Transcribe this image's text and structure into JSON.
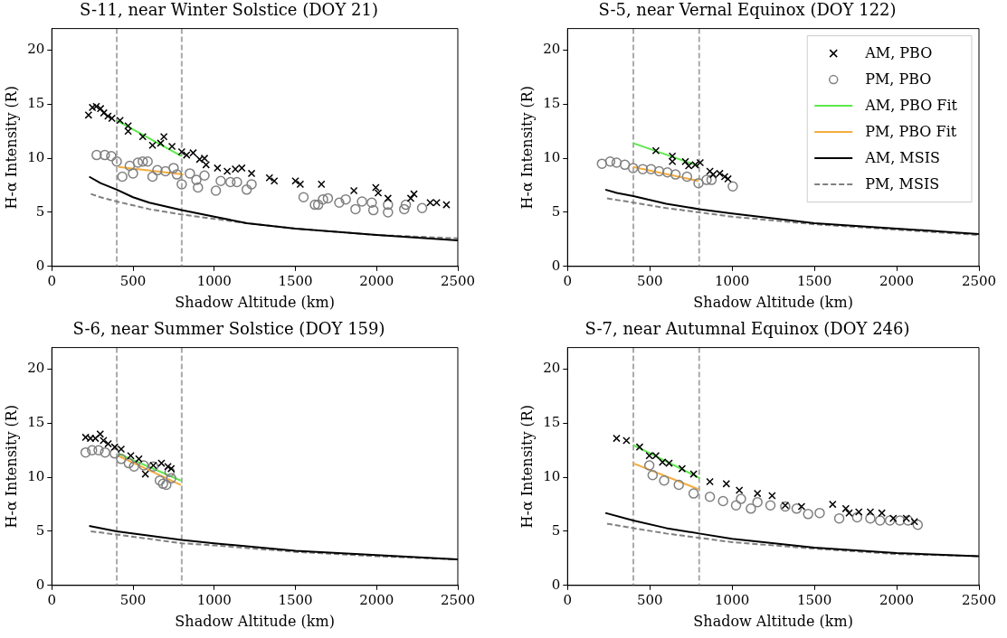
{
  "chart_data": [
    {
      "type": "scatter",
      "title": "S-11, near Winter Solstice (DOY 21)",
      "xlabel": "Shadow Altitude (km)",
      "ylabel": "H-α Intensity (R)",
      "xlim": [
        0,
        2500
      ],
      "ylim": [
        0,
        22
      ],
      "xticks": [
        0,
        500,
        1000,
        1500,
        2000,
        2500
      ],
      "yticks": [
        0,
        5,
        10,
        15,
        20
      ],
      "ref_lines": [
        {
          "axis": "x",
          "value": 400,
          "color": "#aaaaaa",
          "line_style": "dashed"
        },
        {
          "axis": "x",
          "value": 800,
          "color": "#aaaaaa",
          "line_style": "dashed"
        }
      ],
      "series": [
        {
          "type": "scatter",
          "marker": "cross",
          "color": "#000000",
          "x": [
            226,
            250,
            274,
            300,
            320,
            346,
            370,
            420,
            470,
            470,
            560,
            620,
            670,
            690,
            740,
            800,
            830,
            870,
            910,
            940,
            950,
            1020,
            1080,
            1130,
            1170,
            1230,
            1340,
            1370,
            1500,
            1530,
            1660,
            1860,
            1995,
            2010,
            2070,
            2210,
            2230,
            2330,
            2370,
            2430
          ],
          "values": [
            14.0,
            14.7,
            14.8,
            14.6,
            14.2,
            13.9,
            13.7,
            13.5,
            13.0,
            12.5,
            12.0,
            11.2,
            11.4,
            12.0,
            11.1,
            10.6,
            10.3,
            10.5,
            9.9,
            10.0,
            9.4,
            9.1,
            8.8,
            9.0,
            9.1,
            8.6,
            8.2,
            7.9,
            7.9,
            7.6,
            7.6,
            7.0,
            7.3,
            6.8,
            6.3,
            6.3,
            6.7,
            5.9,
            5.9,
            5.7
          ]
        },
        {
          "type": "scatter",
          "marker": "circle",
          "color": "#808080",
          "x": [
            276,
            326,
            366,
            400,
            434,
            480,
            500,
            530,
            560,
            590,
            620,
            650,
            700,
            750,
            770,
            800,
            850,
            890,
            900,
            940,
            1010,
            1040,
            1100,
            1140,
            1200,
            1230,
            1550,
            1620,
            1640,
            1670,
            1700,
            1770,
            1810,
            1870,
            1910,
            1970,
            1980,
            2070,
            2070,
            2170,
            2180,
            2280
          ],
          "values": [
            10.3,
            10.3,
            10.2,
            9.7,
            8.3,
            9.3,
            8.6,
            9.6,
            9.7,
            9.7,
            8.3,
            8.9,
            8.8,
            9.1,
            8.5,
            7.6,
            8.6,
            8.0,
            7.3,
            8.4,
            7.0,
            7.9,
            7.8,
            7.8,
            7.1,
            7.6,
            6.4,
            5.7,
            5.7,
            6.2,
            6.3,
            5.9,
            6.2,
            5.3,
            6.0,
            5.9,
            5.2,
            5.7,
            5.0,
            5.3,
            5.7,
            5.4
          ]
        },
        {
          "type": "line",
          "marker": "none",
          "line_style": "solid",
          "color": "#5de84c",
          "x": [
            400,
            800
          ],
          "values": [
            13.5,
            10.2
          ]
        },
        {
          "type": "line",
          "marker": "none",
          "line_style": "solid",
          "color": "#f5ab3c",
          "x": [
            410,
            810
          ],
          "values": [
            9.2,
            8.5
          ]
        },
        {
          "type": "line",
          "marker": "none",
          "line_style": "solid",
          "color": "#000000",
          "x": [
            230,
            300,
            400,
            500,
            600,
            800,
            1000,
            1200,
            1500,
            2000,
            2500
          ],
          "values": [
            8.3,
            7.7,
            7.1,
            6.4,
            5.9,
            5.2,
            4.6,
            4.0,
            3.5,
            2.9,
            2.4
          ]
        },
        {
          "type": "line",
          "marker": "none",
          "line_style": "dashed",
          "color": "#808080",
          "x": [
            240,
            300,
            400,
            600,
            800,
            1000,
            1200,
            1500,
            2000,
            2500
          ],
          "values": [
            6.7,
            6.4,
            6.0,
            5.3,
            4.8,
            4.4,
            4.0,
            3.5,
            2.9,
            2.6
          ]
        }
      ]
    },
    {
      "type": "scatter",
      "title": "S-5, near Vernal Equinox (DOY 122)",
      "xlabel": "Shadow Altitude (km)",
      "ylabel": "H-α Intensity (R)",
      "xlim": [
        0,
        2500
      ],
      "ylim": [
        0,
        22
      ],
      "xticks": [
        0,
        500,
        1000,
        1500,
        2000,
        2500
      ],
      "yticks": [
        0,
        5,
        10,
        15,
        20
      ],
      "legend": "top right",
      "ref_lines": [
        {
          "axis": "x",
          "value": 400,
          "color": "#aaaaaa",
          "line_style": "dashed"
        },
        {
          "axis": "x",
          "value": 800,
          "color": "#aaaaaa",
          "line_style": "dashed"
        }
      ],
      "series": [
        {
          "name": "AM, PBO",
          "type": "scatter",
          "marker": "cross",
          "color": "#000000",
          "x": [
            537,
            637,
            637,
            716,
            736,
            776,
            806,
            865,
            885,
            925,
            955,
            975
          ],
          "values": [
            10.7,
            10.2,
            9.7,
            9.7,
            9.3,
            9.4,
            9.6,
            8.8,
            8.5,
            8.6,
            8.3,
            8.1
          ]
        },
        {
          "name": "PM, PBO",
          "type": "scatter",
          "marker": "circle",
          "color": "#808080",
          "x": [
            209,
            259,
            298,
            348,
            398,
            457,
            507,
            557,
            607,
            656,
            726,
            796,
            845,
            875,
            1004
          ],
          "values": [
            9.5,
            9.7,
            9.6,
            9.4,
            9.1,
            9.0,
            9.0,
            8.8,
            8.7,
            8.5,
            8.3,
            7.7,
            8.0,
            8.0,
            7.4
          ]
        },
        {
          "name": "AM, PBO Fit",
          "type": "line",
          "marker": "none",
          "line_style": "solid",
          "color": "#5de84c",
          "x": [
            398,
            796
          ],
          "values": [
            11.4,
            9.3
          ]
        },
        {
          "name": "PM, PBO Fit",
          "type": "line",
          "marker": "none",
          "line_style": "solid",
          "color": "#f5ab3c",
          "x": [
            398,
            796
          ],
          "values": [
            9.2,
            7.9
          ]
        },
        {
          "name": "AM, MSIS",
          "type": "line",
          "marker": "none",
          "line_style": "solid",
          "color": "#000000",
          "x": [
            230,
            300,
            400,
            600,
            800,
            1000,
            1500,
            2000,
            2500
          ],
          "values": [
            7.1,
            6.8,
            6.5,
            5.8,
            5.3,
            4.9,
            4.0,
            3.5,
            3.0
          ]
        },
        {
          "name": "PM, MSIS",
          "type": "line",
          "marker": "none",
          "line_style": "dashed",
          "color": "#808080",
          "x": [
            240,
            400,
            600,
            800,
            1000,
            1500,
            2000,
            2500
          ],
          "values": [
            6.3,
            5.9,
            5.4,
            5.0,
            4.6,
            3.9,
            3.4,
            2.9
          ]
        }
      ]
    },
    {
      "type": "scatter",
      "title": "S-6, near Summer Solstice (DOY 159)",
      "xlabel": "Shadow Altitude (km)",
      "ylabel": "H-α Intensity (R)",
      "xlim": [
        0,
        2500
      ],
      "ylim": [
        0,
        22
      ],
      "xticks": [
        0,
        500,
        1000,
        1500,
        2000,
        2500
      ],
      "yticks": [
        0,
        5,
        10,
        15,
        20
      ],
      "ref_lines": [
        {
          "axis": "x",
          "value": 400,
          "color": "#aaaaaa",
          "line_style": "dashed"
        },
        {
          "axis": "x",
          "value": 800,
          "color": "#aaaaaa",
          "line_style": "dashed"
        }
      ],
      "series": [
        {
          "type": "scatter",
          "marker": "cross",
          "color": "#000000",
          "x": [
            208,
            238,
            268,
            298,
            318,
            347,
            387,
            427,
            486,
            536,
            576,
            625,
            675,
            715,
            735
          ],
          "values": [
            13.7,
            13.6,
            13.6,
            14.0,
            13.4,
            13.1,
            12.8,
            12.6,
            12.0,
            11.7,
            10.3,
            11.1,
            11.3,
            11.0,
            10.8
          ]
        },
        {
          "type": "scatter",
          "marker": "circle",
          "color": "#808080",
          "x": [
            208,
            248,
            288,
            328,
            387,
            427,
            474,
            506,
            566,
            625,
            665,
            685,
            705,
            725,
            735
          ],
          "values": [
            12.3,
            12.5,
            12.5,
            12.3,
            12.2,
            11.7,
            11.3,
            11.0,
            11.1,
            11.0,
            9.7,
            9.4,
            9.3,
            10.5,
            9.9
          ]
        },
        {
          "type": "line",
          "marker": "none",
          "line_style": "solid",
          "color": "#5de84c",
          "x": [
            407,
            794
          ],
          "values": [
            12.2,
            9.7
          ]
        },
        {
          "type": "line",
          "marker": "none",
          "line_style": "solid",
          "color": "#f5ab3c",
          "x": [
            407,
            794
          ],
          "values": [
            12.0,
            9.3
          ]
        },
        {
          "type": "line",
          "marker": "none",
          "line_style": "solid",
          "color": "#000000",
          "x": [
            230,
            400,
            600,
            800,
            1000,
            1500,
            2000,
            2500
          ],
          "values": [
            5.5,
            5.0,
            4.6,
            4.2,
            3.9,
            3.2,
            2.8,
            2.4
          ]
        },
        {
          "type": "line",
          "marker": "none",
          "line_style": "dashed",
          "color": "#808080",
          "x": [
            240,
            400,
            600,
            800,
            1000,
            1500,
            2000,
            2500
          ],
          "values": [
            5.0,
            4.7,
            4.3,
            3.9,
            3.7,
            3.1,
            2.7,
            2.4
          ]
        }
      ]
    },
    {
      "type": "scatter",
      "title": "S-7, near Autumnal Equinox (DOY 246)",
      "xlabel": "Shadow Altitude (km)",
      "ylabel": "H-α Intensity (R)",
      "xlim": [
        0,
        2500
      ],
      "ylim": [
        0,
        22
      ],
      "xticks": [
        0,
        500,
        1000,
        1500,
        2000,
        2500
      ],
      "yticks": [
        0,
        5,
        10,
        15,
        20
      ],
      "ref_lines": [
        {
          "axis": "x",
          "value": 400,
          "color": "#aaaaaa",
          "line_style": "dashed"
        },
        {
          "axis": "x",
          "value": 800,
          "color": "#aaaaaa",
          "line_style": "dashed"
        }
      ],
      "series": [
        {
          "type": "scatter",
          "marker": "cross",
          "color": "#000000",
          "x": [
            298,
            358,
            438,
            497,
            537,
            577,
            617,
            696,
            766,
            865,
            965,
            1044,
            1154,
            1243,
            1323,
            1422,
            1611,
            1691,
            1711,
            1770,
            1840,
            1910,
            1979,
            2059,
            2108
          ],
          "values": [
            13.6,
            13.4,
            12.8,
            12.0,
            12.0,
            11.4,
            11.3,
            10.8,
            10.3,
            9.6,
            9.4,
            8.8,
            8.5,
            8.3,
            7.4,
            7.3,
            7.5,
            7.1,
            6.7,
            6.8,
            6.8,
            6.7,
            6.2,
            6.2,
            5.9
          ]
        },
        {
          "type": "scatter",
          "marker": "circle",
          "color": "#808080",
          "x": [
            497,
            517,
            587,
            676,
            766,
            865,
            945,
            1024,
            1054,
            1114,
            1154,
            1233,
            1323,
            1392,
            1462,
            1532,
            1651,
            1760,
            1840,
            1899,
            1959,
            2019,
            2069,
            2128
          ],
          "values": [
            11.1,
            10.2,
            9.7,
            9.3,
            8.5,
            8.2,
            7.8,
            7.4,
            8.0,
            7.1,
            7.7,
            7.4,
            7.3,
            7.1,
            6.6,
            6.7,
            6.2,
            6.3,
            6.2,
            6.0,
            6.0,
            6.0,
            6.0,
            5.6
          ]
        },
        {
          "type": "line",
          "marker": "none",
          "line_style": "solid",
          "color": "#5de84c",
          "x": [
            398,
            806
          ],
          "values": [
            13.0,
            9.9
          ]
        },
        {
          "type": "line",
          "marker": "none",
          "line_style": "solid",
          "color": "#f5ab3c",
          "x": [
            398,
            796
          ],
          "values": [
            11.3,
            8.9
          ]
        },
        {
          "type": "line",
          "marker": "none",
          "line_style": "solid",
          "color": "#000000",
          "x": [
            230,
            400,
            600,
            800,
            1000,
            1500,
            2000,
            2500
          ],
          "values": [
            6.7,
            6.0,
            5.3,
            4.8,
            4.3,
            3.5,
            3.0,
            2.7
          ]
        },
        {
          "type": "line",
          "marker": "none",
          "line_style": "dashed",
          "color": "#808080",
          "x": [
            240,
            400,
            600,
            800,
            1000,
            1500,
            2000,
            2500
          ],
          "values": [
            5.7,
            5.3,
            4.8,
            4.4,
            4.0,
            3.4,
            2.9,
            2.7
          ]
        }
      ]
    }
  ]
}
